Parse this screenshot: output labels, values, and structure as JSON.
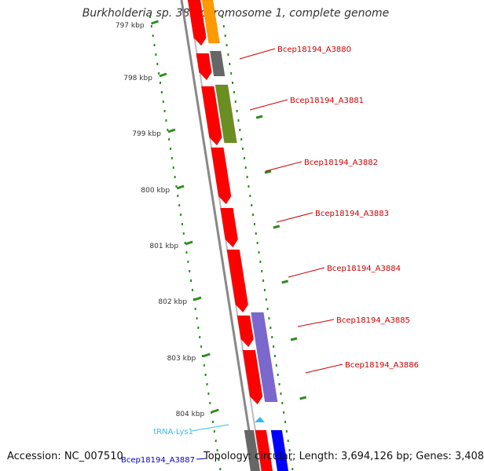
{
  "title": "Burkholderia sp. 383 chromosome 1, complete genome",
  "footer": {
    "accession": "Accession: NC_007510",
    "summary": "Topology: circular; Length: 3,694,126 bp; Genes: 3,408"
  },
  "colors": {
    "gene_label": "#cc0000",
    "trna_label": "#33bbee",
    "highlight_label": "#0000cc",
    "backbone": "#888888",
    "scale_dots": "#2e8b22",
    "tick_label": "#333333"
  },
  "scale_ticks": [
    "797 kbp",
    "798 kbp",
    "799 kbp",
    "800 kbp",
    "801 kbp",
    "802 kbp",
    "803 kbp",
    "804 kbp"
  ],
  "gene_labels": [
    {
      "name": "Bcep18194_A3880",
      "color": "#cc0000"
    },
    {
      "name": "Bcep18194_A3881",
      "color": "#cc0000"
    },
    {
      "name": "Bcep18194_A3882",
      "color": "#cc0000"
    },
    {
      "name": "Bcep18194_A3883",
      "color": "#cc0000"
    },
    {
      "name": "Bcep18194_A3884",
      "color": "#cc0000"
    },
    {
      "name": "Bcep18194_A3885",
      "color": "#cc0000"
    },
    {
      "name": "Bcep18194_A3886",
      "color": "#cc0000"
    },
    {
      "name": "tRNA-Lys1",
      "color": "#33bbee"
    },
    {
      "name": "Bcep18194_A3887",
      "color": "#0000cc"
    }
  ],
  "features": [
    {
      "type": "arrow",
      "color": "#ff0000"
    },
    {
      "type": "arrow",
      "color": "#ff0000"
    },
    {
      "type": "arrow",
      "color": "#ff0000"
    },
    {
      "type": "arrow",
      "color": "#ff0000"
    },
    {
      "type": "arrow",
      "color": "#ff0000"
    },
    {
      "type": "arrow",
      "color": "#ff0000"
    },
    {
      "type": "arrow",
      "color": "#ff0000"
    },
    {
      "type": "arrow",
      "color": "#ff0000"
    },
    {
      "type": "arrow",
      "color": "#ff0000"
    },
    {
      "type": "arrow",
      "color": "#0000ff"
    },
    {
      "type": "box",
      "color": "#ff9900"
    },
    {
      "type": "box",
      "color": "#666666"
    },
    {
      "type": "box",
      "color": "#6b8e23"
    },
    {
      "type": "box",
      "color": "#7b68cc"
    },
    {
      "type": "box",
      "color": "#666666"
    },
    {
      "type": "arrow",
      "color": "#33bbee"
    }
  ]
}
